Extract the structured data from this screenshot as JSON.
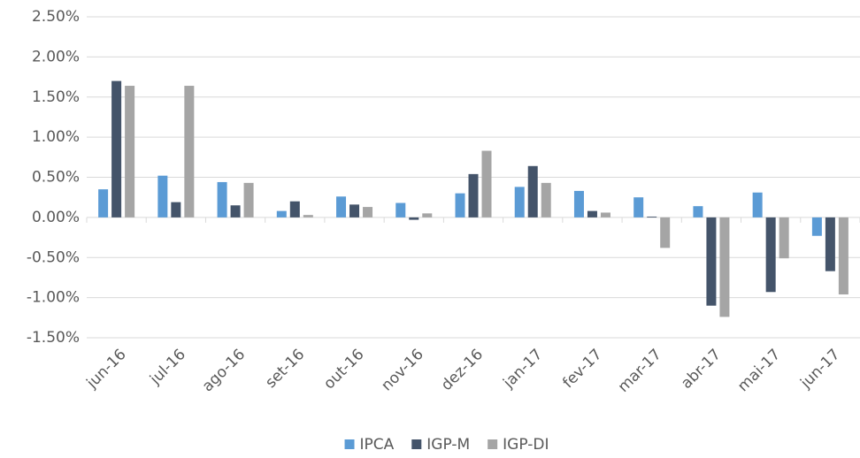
{
  "chart_data": {
    "type": "bar",
    "categories": [
      "jun-16",
      "jul-16",
      "ago-16",
      "set-16",
      "out-16",
      "nov-16",
      "dez-16",
      "jan-17",
      "fev-17",
      "mar-17",
      "abr-17",
      "mai-17",
      "jun-17"
    ],
    "series": [
      {
        "name": "IPCA",
        "color": "#5b9bd5",
        "values": [
          0.35,
          0.52,
          0.44,
          0.08,
          0.26,
          0.18,
          0.3,
          0.38,
          0.33,
          0.25,
          0.14,
          0.31,
          -0.23
        ]
      },
      {
        "name": "IGP-M",
        "color": "#44546a",
        "values": [
          1.7,
          0.19,
          0.15,
          0.2,
          0.16,
          -0.03,
          0.54,
          0.64,
          0.08,
          0.01,
          -1.1,
          -0.93,
          -0.67
        ]
      },
      {
        "name": "IGP-DI",
        "color": "#a5a5a5",
        "values": [
          1.64,
          1.64,
          0.43,
          0.03,
          0.13,
          0.05,
          0.83,
          0.43,
          0.06,
          -0.38,
          -1.24,
          -0.51,
          -0.96
        ]
      }
    ],
    "ylim": [
      -1.5,
      2.5
    ],
    "yticks": [
      {
        "value": -1.5,
        "label": "-1.50%"
      },
      {
        "value": -1.0,
        "label": "-1.00%"
      },
      {
        "value": -0.5,
        "label": "-0.50%"
      },
      {
        "value": 0,
        "label": "0.00%"
      },
      {
        "value": 0.5,
        "label": "0.50%"
      },
      {
        "value": 1.0,
        "label": "1.00%"
      },
      {
        "value": 1.5,
        "label": "1.50%"
      },
      {
        "value": 2.0,
        "label": "2.00%"
      },
      {
        "value": 2.5,
        "label": "2.50%"
      }
    ],
    "grid": true,
    "legend": "bottom"
  }
}
